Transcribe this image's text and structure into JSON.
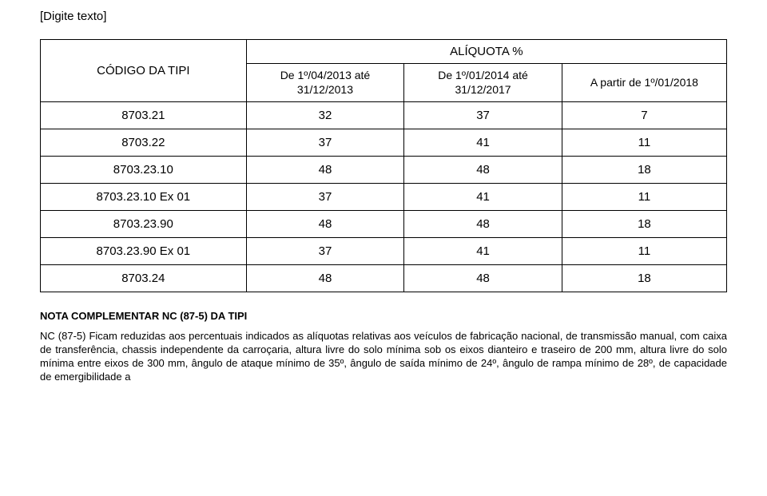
{
  "header": {
    "text": "[Digite texto]"
  },
  "table": {
    "header": {
      "code": "CÓDIGO DA TIPI",
      "aliquota": "ALÍQUOTA %",
      "col_a": "De 1º/04/2013 até 31/12/2013",
      "col_b": "De 1º/01/2014 até 31/12/2017",
      "col_c": "A partir de 1º/01/2018"
    },
    "rows": [
      {
        "code": "8703.21",
        "a": "32",
        "b": "37",
        "c": "7"
      },
      {
        "code": "8703.22",
        "a": "37",
        "b": "41",
        "c": "11"
      },
      {
        "code": "8703.23.10",
        "a": "48",
        "b": "48",
        "c": "18"
      },
      {
        "code": "8703.23.10 Ex 01",
        "a": "37",
        "b": "41",
        "c": "11"
      },
      {
        "code": "8703.23.90",
        "a": "48",
        "b": "48",
        "c": "18"
      },
      {
        "code": "8703.23.90 Ex 01",
        "a": "37",
        "b": "41",
        "c": "11"
      },
      {
        "code": "8703.24",
        "a": "48",
        "b": "48",
        "c": "18"
      }
    ]
  },
  "note": {
    "title": "NOTA COMPLEMENTAR NC (87-5) DA TIPI",
    "body": "NC (87-5) Ficam reduzidas aos percentuais indicados as alíquotas relativas aos veículos de fabricação nacional, de transmissão manual, com caixa de transferência, chassis independente da carroçaria, altura livre do solo mínima sob os eixos dianteiro e traseiro de 200 mm, altura livre do solo mínima entre eixos de 300 mm, ângulo de ataque mínimo de 35º, ângulo de saída mínimo de 24º, ângulo de rampa mínimo de 28º, de capacidade de emergibilidade a"
  }
}
